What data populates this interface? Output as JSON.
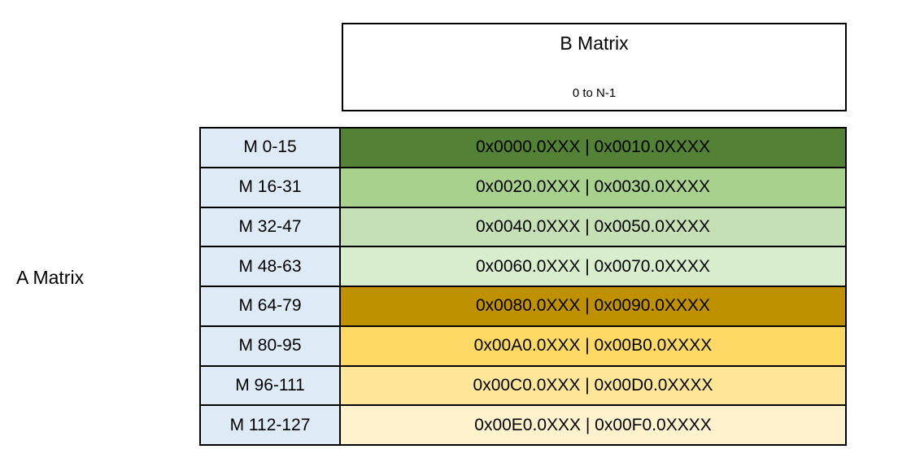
{
  "diagram": {
    "b_matrix": {
      "title": "B Matrix",
      "subtitle": "0 to N-1",
      "background": "#FFFFFF",
      "border_color": "#000000"
    },
    "a_matrix": {
      "label": "A Matrix"
    },
    "table": {
      "label_background": "#DEEBF7",
      "border_color": "#000000",
      "text_color": "#000000",
      "rows": [
        {
          "label": "M 0-15",
          "value": "0x0000.0XXX | 0x0010.0XXXX",
          "background": "#538135"
        },
        {
          "label": "M 16-31",
          "value": "0x0020.0XXX | 0x0030.0XXXX",
          "background": "#A9D18E"
        },
        {
          "label": "M 32-47",
          "value": "0x0040.0XXX | 0x0050.0XXXX",
          "background": "#C5E0B4"
        },
        {
          "label": "M 48-63",
          "value": "0x0060.0XXX | 0x0070.0XXXX",
          "background": "#D7EDCC"
        },
        {
          "label": "M 64-79",
          "value": "0x0080.0XXX | 0x0090.0XXXX",
          "background": "#BF9000"
        },
        {
          "label": "M 80-95",
          "value": "0x00A0.0XXX | 0x00B0.0XXXX",
          "background": "#FFD966"
        },
        {
          "label": "M 96-111",
          "value": "0x00C0.0XXX | 0x00D0.0XXXX",
          "background": "#FFE699"
        },
        {
          "label": "M 112-127",
          "value": "0x00E0.0XXX | 0x00F0.0XXXX",
          "background": "#FFF2CC"
        }
      ]
    }
  }
}
